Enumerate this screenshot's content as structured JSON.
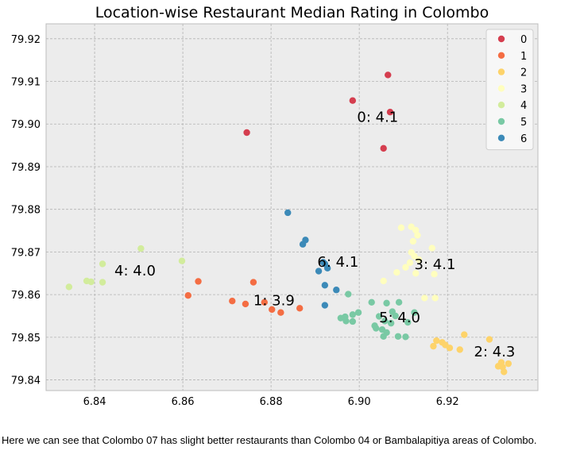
{
  "chart_data": {
    "type": "scatter",
    "title": "Location-wise Restaurant Median Rating in Colombo",
    "xlabel": "",
    "ylabel": "",
    "xlim": [
      6.829,
      6.9405
    ],
    "ylim": [
      79.8375,
      79.9235
    ],
    "x_ticks": [
      6.84,
      6.86,
      6.88,
      6.9,
      6.92
    ],
    "x_tick_labels": [
      "6.84",
      "6.86",
      "6.88",
      "6.90",
      "6.92"
    ],
    "y_ticks": [
      79.84,
      79.85,
      79.86,
      79.87,
      79.88,
      79.89,
      79.9,
      79.91,
      79.92
    ],
    "y_tick_labels": [
      "79.84",
      "79.85",
      "79.86",
      "79.87",
      "79.88",
      "79.89",
      "79.90",
      "79.91",
      "79.92"
    ],
    "grid": true,
    "legend_position": "top-right",
    "series": [
      {
        "name": "0",
        "color": "#d53e4f",
        "points": [
          [
            6.9065,
            79.9115
          ],
          [
            6.8985,
            79.9055
          ],
          [
            6.907,
            79.9028
          ],
          [
            6.8745,
            79.898
          ],
          [
            6.9055,
            79.8943
          ]
        ]
      },
      {
        "name": "1",
        "color": "#f46d43",
        "points": [
          [
            6.8635,
            79.8631
          ],
          [
            6.876,
            79.8629
          ],
          [
            6.8612,
            79.8598
          ],
          [
            6.8712,
            79.8585
          ],
          [
            6.8742,
            79.8578
          ],
          [
            6.8785,
            79.8582
          ],
          [
            6.8802,
            79.8565
          ],
          [
            6.8822,
            79.8558
          ],
          [
            6.8865,
            79.8568
          ]
        ]
      },
      {
        "name": "2",
        "color": "#fdd36a",
        "points": [
          [
            6.9238,
            79.8506
          ],
          [
            6.9295,
            79.8495
          ],
          [
            6.9175,
            79.8492
          ],
          [
            6.9188,
            79.8488
          ],
          [
            6.9168,
            79.8479
          ],
          [
            6.9195,
            79.8482
          ],
          [
            6.9205,
            79.8475
          ],
          [
            6.9228,
            79.8471
          ],
          [
            6.9322,
            79.8441
          ],
          [
            6.9338,
            79.8438
          ],
          [
            6.9315,
            79.8432
          ],
          [
            6.9325,
            79.843
          ],
          [
            6.9328,
            79.8419
          ]
        ]
      },
      {
        "name": "3",
        "color": "#fffebe",
        "points": [
          [
            6.9095,
            79.8757
          ],
          [
            6.9118,
            79.8759
          ],
          [
            6.9128,
            79.8751
          ],
          [
            6.9132,
            79.8739
          ],
          [
            6.9122,
            79.8725
          ],
          [
            6.9165,
            79.8709
          ],
          [
            6.9118,
            79.8699
          ],
          [
            6.9125,
            79.869
          ],
          [
            6.9135,
            79.8682
          ],
          [
            6.9115,
            79.8675
          ],
          [
            6.9105,
            79.8664
          ],
          [
            6.9085,
            79.8652
          ],
          [
            6.9128,
            79.865
          ],
          [
            6.917,
            79.8648
          ],
          [
            6.9055,
            79.8632
          ],
          [
            6.9148,
            79.8592
          ],
          [
            6.9172,
            79.8592
          ]
        ]
      },
      {
        "name": "4",
        "color": "#d2ec9c",
        "points": [
          [
            6.8505,
            79.8708
          ],
          [
            6.8418,
            79.8672
          ],
          [
            6.8598,
            79.8679
          ],
          [
            6.8382,
            79.8632
          ],
          [
            6.8392,
            79.863
          ],
          [
            6.8418,
            79.8629
          ],
          [
            6.8342,
            79.8618
          ]
        ]
      },
      {
        "name": "5",
        "color": "#79c9a4",
        "points": [
          [
            6.8975,
            79.8601
          ],
          [
            6.9028,
            79.8582
          ],
          [
            6.9062,
            79.858
          ],
          [
            6.909,
            79.8582
          ],
          [
            6.9075,
            79.856
          ],
          [
            6.8998,
            79.8558
          ],
          [
            6.8985,
            79.8553
          ],
          [
            6.8968,
            79.8548
          ],
          [
            6.9045,
            79.8549
          ],
          [
            6.9082,
            79.855
          ],
          [
            6.8958,
            79.8545
          ],
          [
            6.9058,
            79.8538
          ],
          [
            6.897,
            79.8538
          ],
          [
            6.8985,
            79.8537
          ],
          [
            6.911,
            79.8535
          ],
          [
            6.9072,
            79.8533
          ],
          [
            6.9038,
            79.8521
          ],
          [
            6.9052,
            79.8518
          ],
          [
            6.9062,
            79.8511
          ],
          [
            6.9088,
            79.8502
          ],
          [
            6.9055,
            79.8502
          ],
          [
            6.9105,
            79.8501
          ],
          [
            6.9125,
            79.8558
          ],
          [
            6.9035,
            79.8527
          ]
        ]
      },
      {
        "name": "6",
        "color": "#3c8ab8",
        "points": [
          [
            6.8838,
            79.8792
          ],
          [
            6.8878,
            79.8728
          ],
          [
            6.8872,
            79.8718
          ],
          [
            6.8918,
            79.8676
          ],
          [
            6.8922,
            79.8672
          ],
          [
            6.8928,
            79.8662
          ],
          [
            6.8908,
            79.8655
          ],
          [
            6.8922,
            79.8622
          ],
          [
            6.8948,
            79.8611
          ],
          [
            6.8922,
            79.8575
          ]
        ]
      }
    ],
    "annotations": [
      {
        "text": "0: 4.1",
        "x": 6.8995,
        "y": 79.9005
      },
      {
        "text": "1: 3.9",
        "x": 6.876,
        "y": 79.8575
      },
      {
        "text": "2: 4.3",
        "x": 6.926,
        "y": 79.8455
      },
      {
        "text": "3: 4.1",
        "x": 6.9125,
        "y": 79.866
      },
      {
        "text": "4: 4.0",
        "x": 6.8445,
        "y": 79.8645
      },
      {
        "text": "5: 4.0",
        "x": 6.9045,
        "y": 79.8535
      },
      {
        "text": "6: 4.1",
        "x": 6.8905,
        "y": 79.8665
      }
    ]
  },
  "caption": "Here we can see that Colombo 07 has slight better restaurants than Colombo 04 or Bambalapitiya areas of Colombo."
}
